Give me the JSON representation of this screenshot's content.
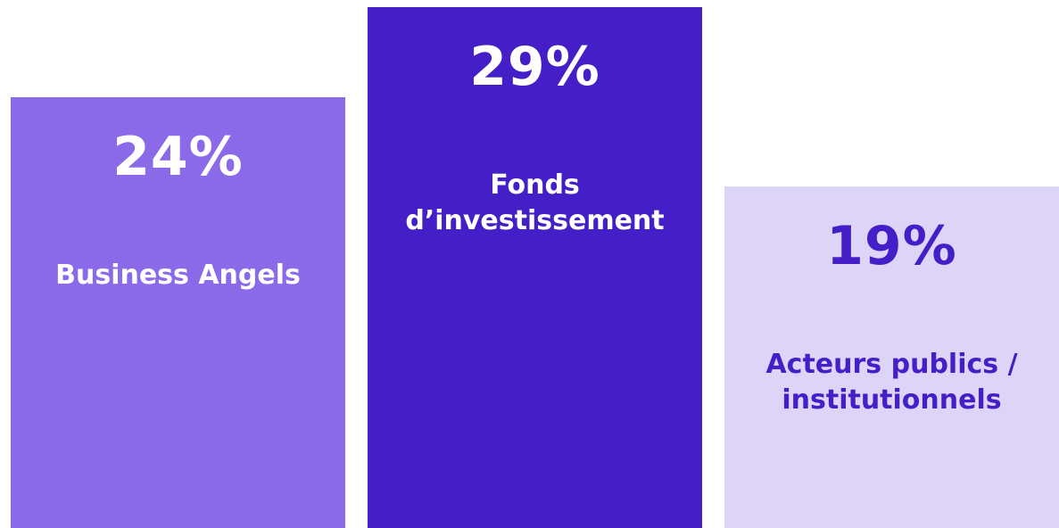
{
  "chart_data": {
    "type": "bar",
    "categories": [
      "Business Angels",
      "Fonds d’investissement",
      "Acteurs publics / institutionnels"
    ],
    "values": [
      24,
      29,
      19
    ],
    "value_labels": [
      "24%",
      "29%",
      "19%"
    ],
    "colors": [
      "#8a6ae8",
      "#441ec6",
      "#ddd5f7"
    ],
    "label_colors": [
      "#ffffff",
      "#ffffff",
      "#441ec6"
    ]
  }
}
